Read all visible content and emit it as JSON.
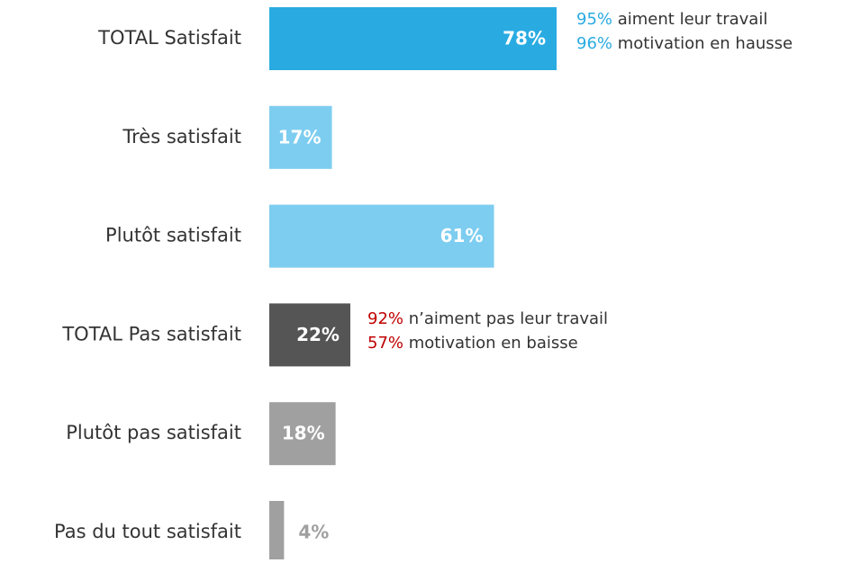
{
  "chart_data": {
    "type": "bar",
    "orientation": "horizontal",
    "categories": [
      "TOTAL Satisfait",
      "Très satisfait",
      "Plutôt satisfait",
      "TOTAL Pas satisfait",
      "Plutôt pas satisfait",
      "Pas du tout satisfait"
    ],
    "values": [
      78,
      17,
      61,
      22,
      18,
      4
    ],
    "value_labels": [
      "78%",
      "17%",
      "61%",
      "22%",
      "18%",
      "4%"
    ],
    "colors": [
      "#29abe2",
      "#7dcdf0",
      "#7dcdf0",
      "#555555",
      "#a0a0a0",
      "#a0a0a0"
    ],
    "annotations": [
      {
        "color": "#29abe2",
        "lines": [
          {
            "highlight": "95%",
            "text": " aiment leur travail"
          },
          {
            "highlight": "96%",
            "text": " motivation en hausse"
          }
        ]
      },
      {
        "color": "#c00000",
        "lines": [
          {
            "highlight": "92%",
            "text": " n’aiment pas leur travail"
          },
          {
            "highlight": "57%",
            "text": " motivation en baisse"
          }
        ]
      }
    ]
  }
}
